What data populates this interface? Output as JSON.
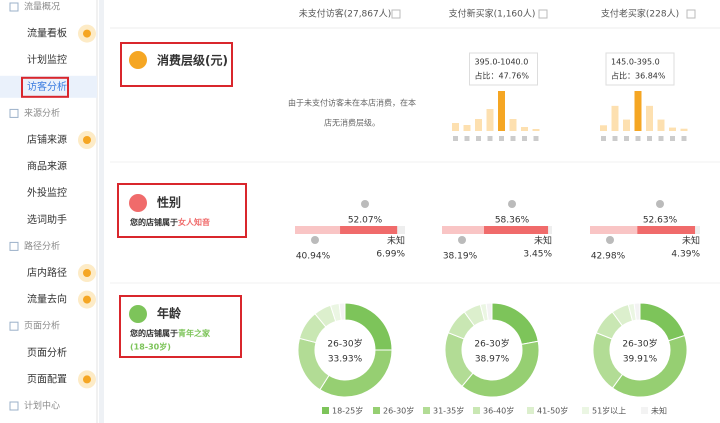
{
  "sidebar": {
    "items": [
      {
        "label": "流量概况",
        "group": true
      },
      {
        "label": "流量看板",
        "badge": true
      },
      {
        "label": "计划监控"
      },
      {
        "label": "访客分析",
        "active": true
      },
      {
        "label": "来源分析",
        "group": true
      },
      {
        "label": "店铺来源",
        "badge": true
      },
      {
        "label": "商品来源"
      },
      {
        "label": "外投监控"
      },
      {
        "label": "选词助手"
      },
      {
        "label": "路径分析",
        "group": true
      },
      {
        "label": "店内路径",
        "badge": true
      },
      {
        "label": "流量去向",
        "badge": true
      },
      {
        "label": "页面分析",
        "group": true
      },
      {
        "label": "页面分析"
      },
      {
        "label": "页面配置",
        "badge": true
      },
      {
        "label": "计划中心",
        "group": true
      }
    ]
  },
  "columns": [
    "未支付访客(27,867人)",
    "支付新买家(1,160人)",
    "支付老买家(228人)"
  ],
  "spending": {
    "title": "消费层级(元)",
    "note": [
      "由于未支付访客未在本店消费，在本",
      "店无消费层级。"
    ],
    "charts": [
      {
        "column": 1,
        "range": "395.0-1040.0",
        "share": "占比：47.76%",
        "values": [
          8,
          6,
          12,
          22,
          40,
          12,
          4,
          2
        ],
        "highlight": 4,
        "color": "#f5a623",
        "base_color": "#fde0b0"
      },
      {
        "column": 2,
        "range": "145.0-395.0",
        "share": "占比：36.84%",
        "values": [
          5,
          22,
          10,
          35,
          22,
          10,
          3,
          2
        ],
        "highlight": 3,
        "color": "#f5a623",
        "base_color": "#fde0b0"
      }
    ]
  },
  "gender": {
    "title": "性别",
    "desc_prefix": "您的店铺属于",
    "desc_highlight": "女人知音",
    "unknown_label": "未知",
    "colors": [
      "#f06b6b",
      "#f9c5c5",
      "#eeeeee"
    ],
    "columns": [
      {
        "values": [
          52.07,
          40.94,
          6.99
        ],
        "value_labels": [
          "52.07%",
          "40.94%",
          "6.99%"
        ]
      },
      {
        "values": [
          58.36,
          38.19,
          3.45
        ],
        "value_labels": [
          "58.36%",
          "38.19%",
          "3.45%"
        ]
      },
      {
        "values": [
          52.63,
          42.98,
          4.39
        ],
        "value_labels": [
          "52.63%",
          "42.98%",
          "4.39%"
        ]
      }
    ]
  },
  "age": {
    "title": "年龄",
    "desc_prefix": "您的店铺属于",
    "desc_highlight": "青年之家",
    "desc_range": "(18-30岁)",
    "legend": [
      {
        "name": "18-25岁",
        "color": "#7dc45a"
      },
      {
        "name": "26-30岁",
        "color": "#96cf72"
      },
      {
        "name": "31-35岁",
        "color": "#b2dc95"
      },
      {
        "name": "36-40岁",
        "color": "#c9e7b3"
      },
      {
        "name": "41-50岁",
        "color": "#dcefcd"
      },
      {
        "name": "51岁以上",
        "color": "#ebf6e3"
      },
      {
        "name": "未知",
        "color": "#f3f3f3"
      }
    ],
    "donuts": [
      {
        "values": [
          25,
          33.93,
          20,
          10,
          6,
          3,
          2
        ],
        "highlight": 1,
        "highlight_label": "33.93%"
      },
      {
        "values": [
          22,
          38.97,
          20,
          9,
          6,
          2,
          2
        ],
        "highlight": 1,
        "highlight_label": "38.97%"
      },
      {
        "values": [
          20,
          39.91,
          21,
          9,
          6,
          2,
          2
        ],
        "highlight": 1,
        "highlight_label": "39.91%"
      }
    ]
  }
}
